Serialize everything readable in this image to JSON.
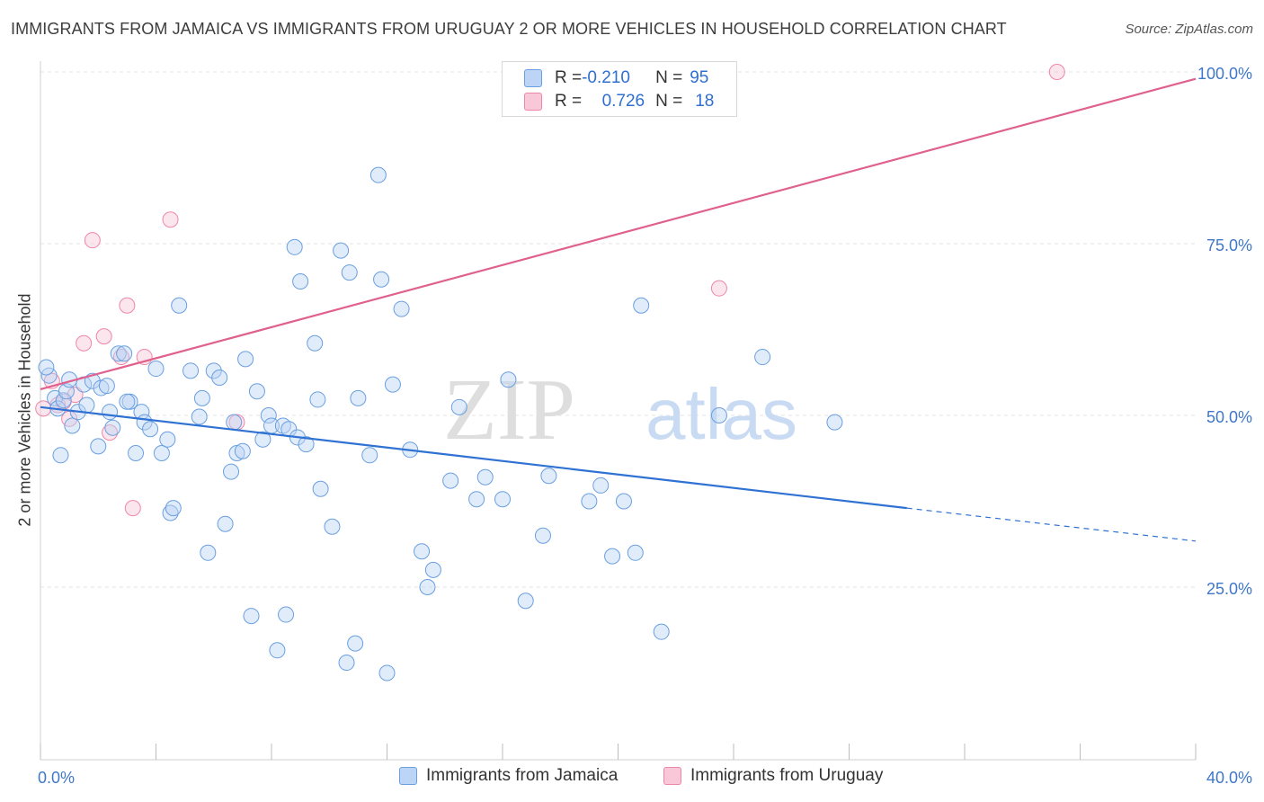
{
  "header": {
    "title": "IMMIGRANTS FROM JAMAICA VS IMMIGRANTS FROM URUGUAY 2 OR MORE VEHICLES IN HOUSEHOLD CORRELATION CHART",
    "source": "Source: ZipAtlas.com"
  },
  "watermark": {
    "part1": "ZIP",
    "part2": "atlas"
  },
  "stats": {
    "jamaica": {
      "r_label": "R = ",
      "r_value": "-0.210",
      "n_label": "N = ",
      "n_value": "95"
    },
    "uruguay": {
      "r_label": "R = ",
      "r_value": "0.726",
      "n_label": "N = ",
      "n_value": "18"
    }
  },
  "chart_data": {
    "type": "scatter",
    "xlabel": "",
    "ylabel": "2 or more Vehicles in Household",
    "xlim": [
      0,
      40
    ],
    "ylim": [
      0,
      105
    ],
    "x_tick_labels": [
      {
        "value": 0,
        "label": "0.0%"
      },
      {
        "value": 40,
        "label": "40.0%"
      }
    ],
    "y_tick_labels": [
      {
        "value": 25,
        "label": "25.0%"
      },
      {
        "value": 50,
        "label": "50.0%"
      },
      {
        "value": 75,
        "label": "75.0%"
      },
      {
        "value": 100,
        "label": "100.0%"
      }
    ],
    "grid": true,
    "colors": {
      "jamaica": "#6a9fe0",
      "uruguay": "#ef86a8",
      "jamaica_line": "#2f72d3",
      "uruguay_line": "#e0608e",
      "axis_text": "#3f77c9"
    },
    "series": [
      {
        "name": "Immigrants from Jamaica",
        "trend": {
          "x0": 0,
          "y0": 51.2,
          "x1": 30,
          "y1": 36.5,
          "dash_to_x": 40,
          "dash_to_y": 31.7
        },
        "points": [
          [
            0.3,
            55.8
          ],
          [
            0.5,
            52.5
          ],
          [
            0.6,
            51.0
          ],
          [
            0.8,
            52.2
          ],
          [
            0.9,
            53.5
          ],
          [
            1.0,
            55.2
          ],
          [
            1.1,
            48.5
          ],
          [
            0.7,
            44.2
          ],
          [
            1.3,
            50.5
          ],
          [
            1.5,
            54.5
          ],
          [
            1.6,
            51.5
          ],
          [
            1.8,
            55.0
          ],
          [
            2.0,
            45.5
          ],
          [
            2.1,
            54.0
          ],
          [
            2.3,
            54.3
          ],
          [
            2.5,
            48.2
          ],
          [
            2.7,
            59.0
          ],
          [
            2.9,
            59.0
          ],
          [
            3.1,
            52.0
          ],
          [
            3.3,
            44.5
          ],
          [
            3.5,
            50.5
          ],
          [
            3.6,
            49.0
          ],
          [
            3.8,
            48.0
          ],
          [
            4.0,
            56.8
          ],
          [
            4.2,
            44.5
          ],
          [
            4.4,
            46.5
          ],
          [
            4.5,
            35.8
          ],
          [
            4.6,
            36.5
          ],
          [
            4.8,
            66.0
          ],
          [
            5.2,
            56.5
          ],
          [
            5.5,
            49.8
          ],
          [
            5.6,
            52.5
          ],
          [
            5.8,
            30.0
          ],
          [
            6.0,
            56.5
          ],
          [
            6.2,
            55.5
          ],
          [
            6.4,
            34.2
          ],
          [
            6.6,
            41.8
          ],
          [
            6.7,
            49.0
          ],
          [
            6.8,
            44.5
          ],
          [
            7.0,
            44.8
          ],
          [
            7.1,
            58.2
          ],
          [
            7.3,
            20.8
          ],
          [
            7.5,
            53.5
          ],
          [
            7.7,
            46.5
          ],
          [
            7.9,
            50.0
          ],
          [
            8.0,
            48.5
          ],
          [
            8.2,
            15.8
          ],
          [
            8.4,
            48.5
          ],
          [
            8.5,
            21.0
          ],
          [
            8.6,
            48.0
          ],
          [
            8.8,
            74.5
          ],
          [
            8.9,
            46.8
          ],
          [
            9.0,
            69.5
          ],
          [
            9.2,
            45.8
          ],
          [
            9.5,
            60.5
          ],
          [
            9.6,
            52.3
          ],
          [
            9.7,
            39.3
          ],
          [
            10.1,
            33.8
          ],
          [
            10.4,
            74.0
          ],
          [
            10.6,
            14.0
          ],
          [
            10.7,
            70.8
          ],
          [
            10.9,
            16.8
          ],
          [
            11.0,
            52.5
          ],
          [
            11.4,
            44.2
          ],
          [
            11.7,
            85.0
          ],
          [
            11.8,
            69.8
          ],
          [
            12.0,
            12.5
          ],
          [
            12.2,
            54.5
          ],
          [
            12.5,
            65.5
          ],
          [
            12.8,
            45.0
          ],
          [
            13.2,
            30.2
          ],
          [
            13.4,
            25.0
          ],
          [
            13.6,
            27.5
          ],
          [
            14.2,
            40.5
          ],
          [
            14.5,
            51.2
          ],
          [
            15.1,
            37.8
          ],
          [
            15.4,
            41.0
          ],
          [
            16.0,
            37.8
          ],
          [
            16.2,
            55.2
          ],
          [
            16.8,
            23.0
          ],
          [
            17.4,
            32.5
          ],
          [
            17.6,
            41.2
          ],
          [
            19.0,
            37.5
          ],
          [
            19.4,
            39.8
          ],
          [
            19.8,
            29.5
          ],
          [
            20.2,
            37.5
          ],
          [
            20.6,
            30.0
          ],
          [
            20.8,
            66.0
          ],
          [
            21.5,
            18.5
          ],
          [
            23.5,
            50.0
          ],
          [
            25.0,
            58.5
          ],
          [
            27.5,
            49.0
          ],
          [
            0.2,
            57.0
          ],
          [
            3.0,
            52.0
          ],
          [
            2.4,
            50.5
          ]
        ]
      },
      {
        "name": "Immigrants from Uruguay",
        "trend": {
          "x0": 0,
          "y0": 53.8,
          "x1": 40,
          "y1": 99.0
        },
        "points": [
          [
            0.1,
            51.0
          ],
          [
            0.4,
            55.0
          ],
          [
            0.6,
            51.5
          ],
          [
            0.8,
            52.0
          ],
          [
            1.0,
            49.5
          ],
          [
            1.2,
            53.0
          ],
          [
            1.5,
            60.5
          ],
          [
            1.8,
            75.5
          ],
          [
            2.2,
            61.5
          ],
          [
            2.4,
            47.5
          ],
          [
            2.8,
            58.5
          ],
          [
            3.0,
            66.0
          ],
          [
            3.2,
            36.5
          ],
          [
            3.6,
            58.5
          ],
          [
            4.5,
            78.5
          ],
          [
            6.8,
            49.0
          ],
          [
            23.5,
            68.5
          ],
          [
            35.2,
            100.0
          ]
        ]
      }
    ]
  },
  "legend": {
    "jamaica_label": "Immigrants from Jamaica",
    "uruguay_label": "Immigrants from Uruguay"
  }
}
